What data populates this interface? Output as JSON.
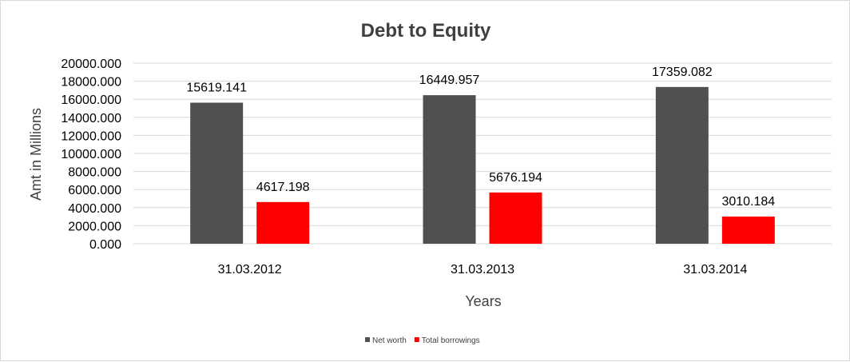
{
  "chart_data": {
    "type": "bar",
    "title": "Debt to Equity",
    "xlabel": "Years",
    "ylabel": "Amt in Millions",
    "categories": [
      "31.03.2012",
      "31.03.2013",
      "31.03.2014"
    ],
    "ylim": [
      0,
      20000
    ],
    "yticks": [
      "0.000",
      "2000.000",
      "4000.000",
      "6000.000",
      "8000.000",
      "10000.000",
      "12000.000",
      "14000.000",
      "16000.000",
      "18000.000",
      "20000.000"
    ],
    "grid": true,
    "legend_position": "bottom",
    "series": [
      {
        "name": "Net worth",
        "color": "#505050",
        "values": [
          15619.141,
          16449.957,
          17359.082
        ],
        "labels": [
          "15619.141",
          "16449.957",
          "17359.082"
        ]
      },
      {
        "name": "Total borrowings",
        "color": "#ff0000",
        "values": [
          4617.198,
          5676.194,
          3010.184
        ],
        "labels": [
          "4617.198",
          "5676.194",
          "3010.184"
        ]
      }
    ]
  }
}
